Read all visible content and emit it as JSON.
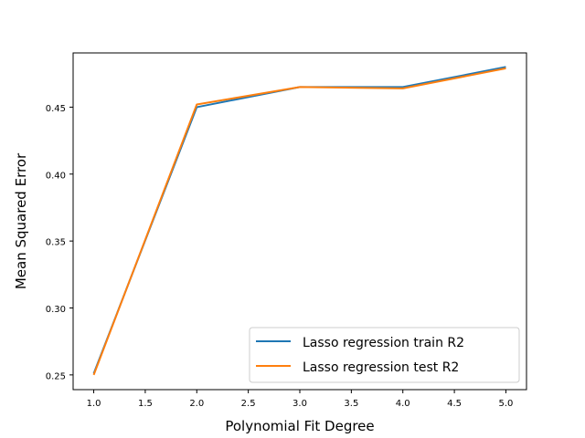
{
  "chart_data": {
    "type": "line",
    "title": "",
    "xlabel": "Polynomial Fit Degree",
    "ylabel": "Mean Squared Error",
    "x": [
      1.0,
      2.0,
      3.0,
      4.0,
      5.0
    ],
    "xlim": [
      0.8,
      5.2
    ],
    "ylim": [
      0.239,
      0.4905
    ],
    "x_ticks": [
      "1.0",
      "1.5",
      "2.0",
      "2.5",
      "3.0",
      "3.5",
      "4.0",
      "4.5",
      "5.0"
    ],
    "y_ticks": [
      "0.25",
      "0.30",
      "0.35",
      "0.40",
      "0.45"
    ],
    "grid": false,
    "legend_position": "lower-right",
    "series": [
      {
        "name": "Lasso regression train R2",
        "color": "#1f77b4",
        "values": [
          0.251,
          0.45,
          0.465,
          0.465,
          0.48
        ]
      },
      {
        "name": "Lasso regression test R2",
        "color": "#ff7f0e",
        "values": [
          0.25,
          0.452,
          0.465,
          0.464,
          0.479
        ]
      }
    ]
  }
}
